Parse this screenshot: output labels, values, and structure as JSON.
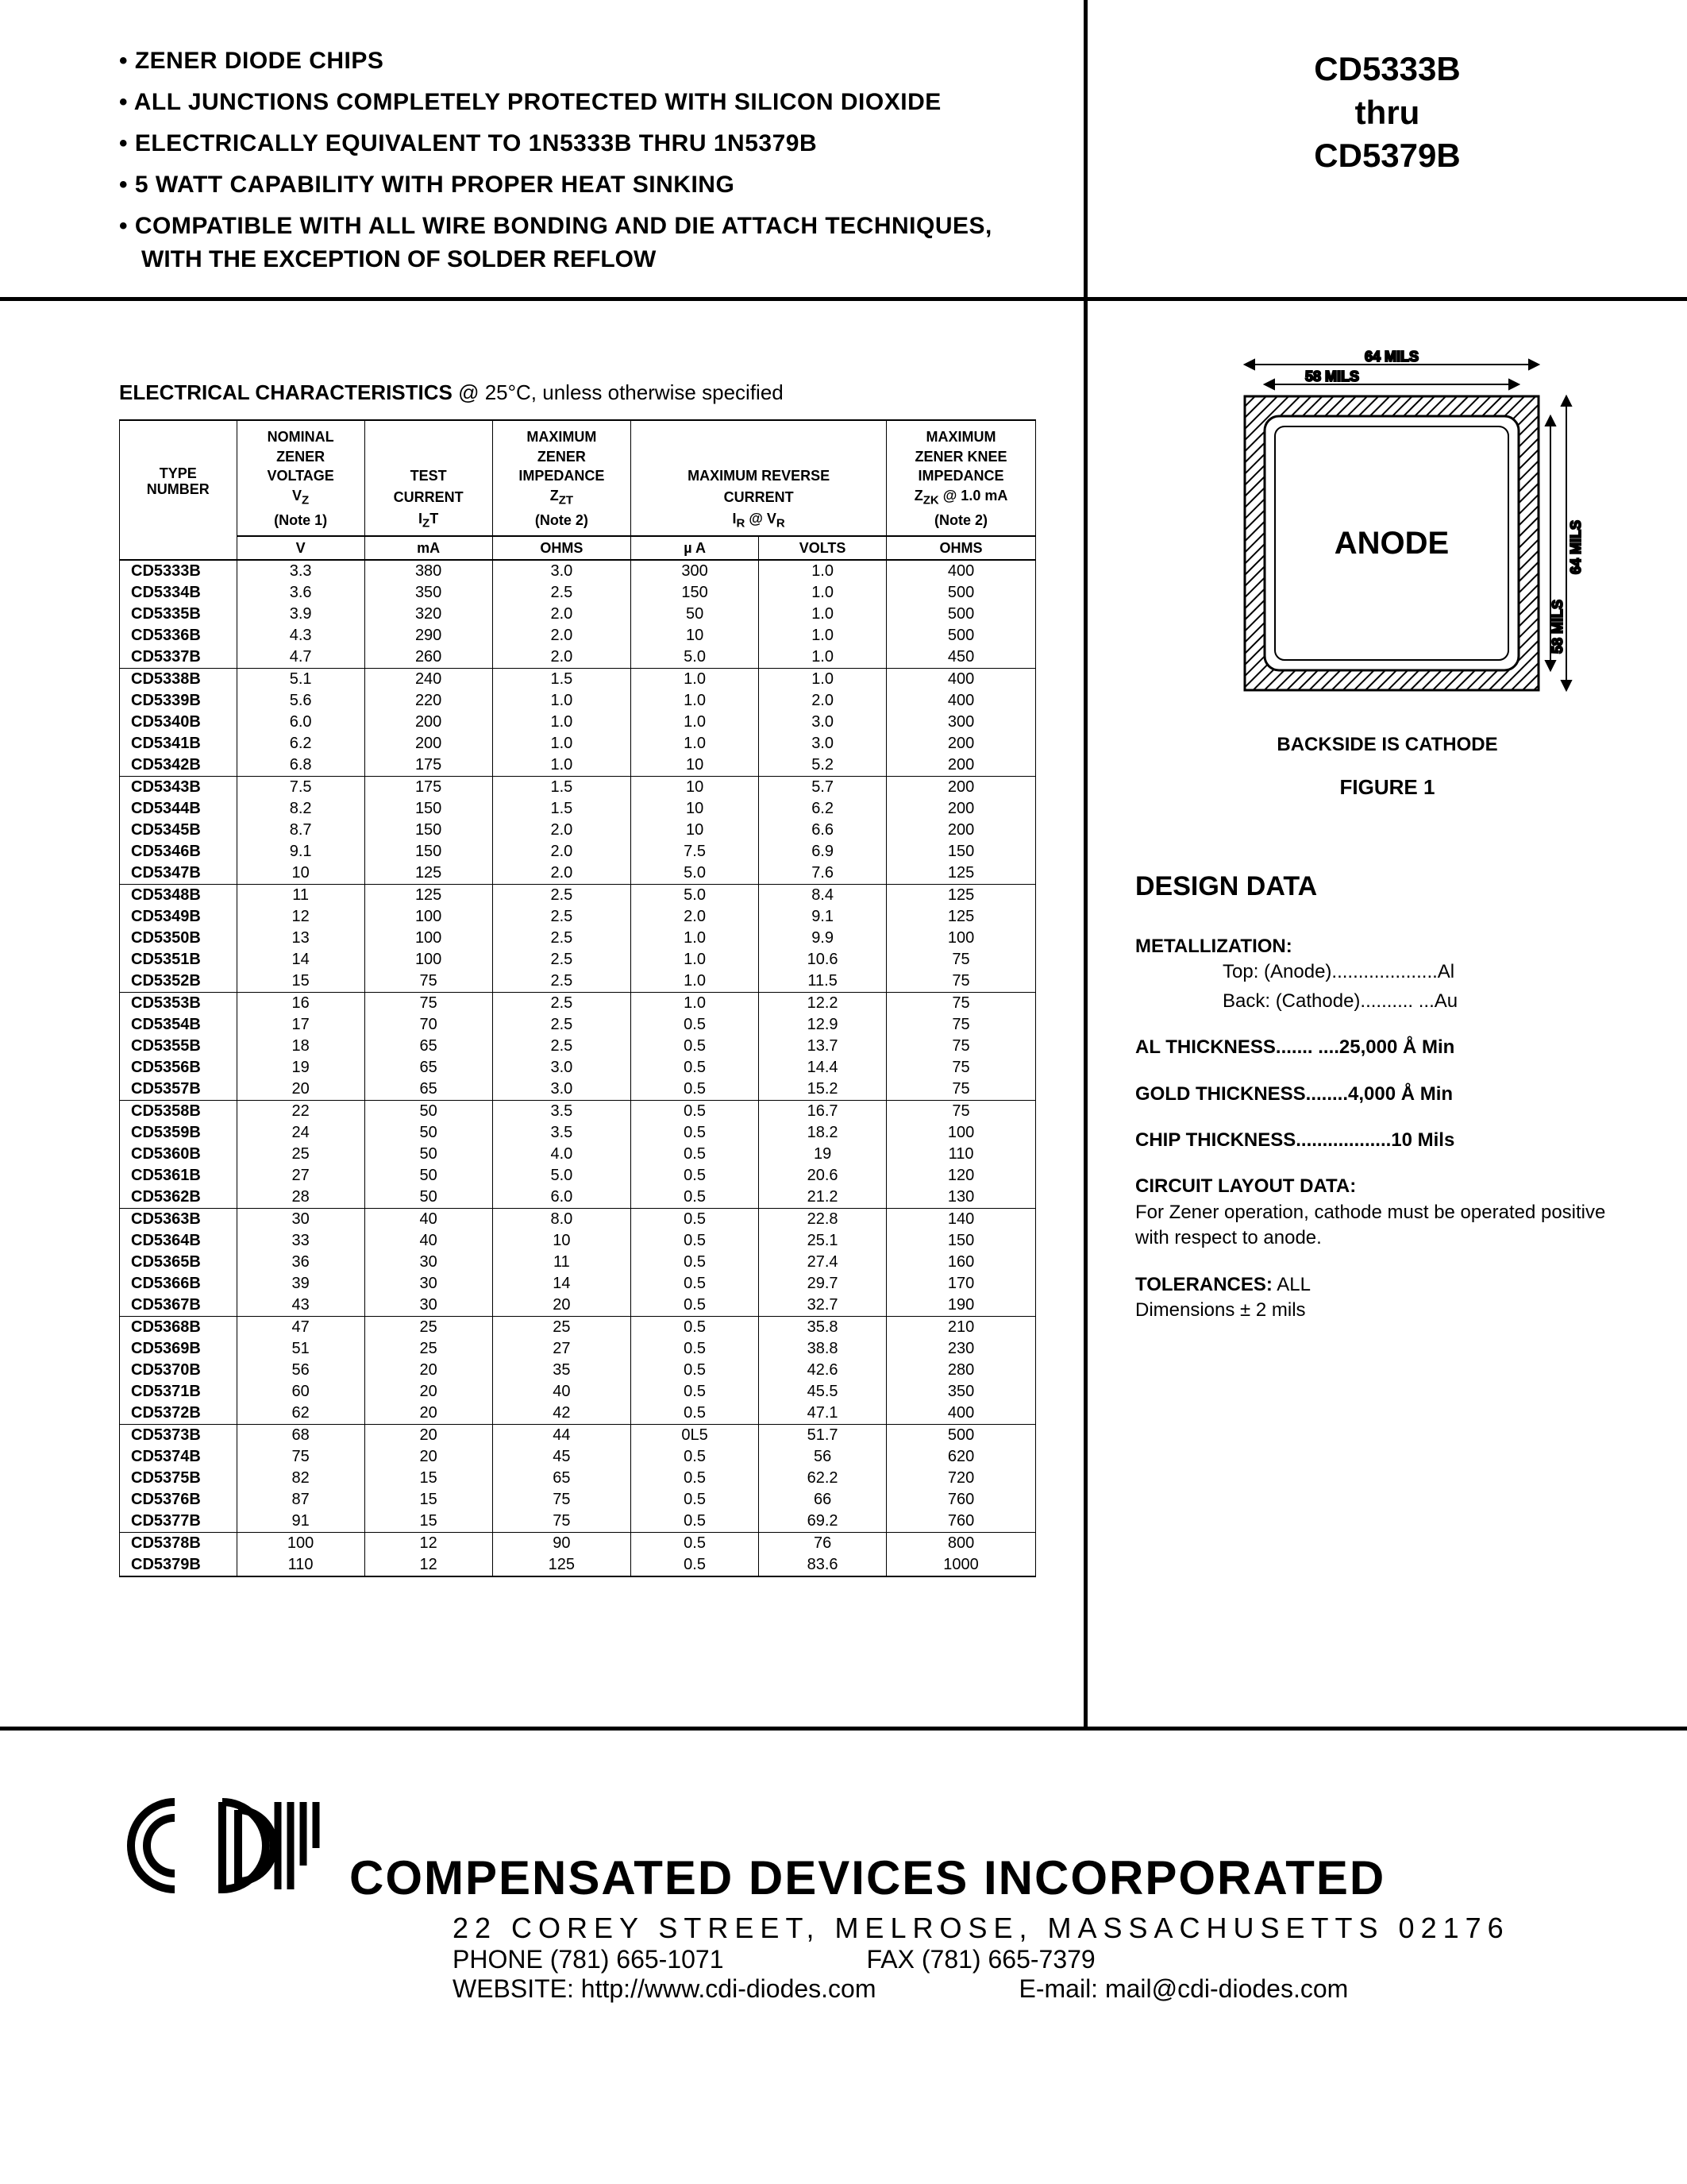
{
  "header": {
    "bullets": [
      "• ZENER DIODE CHIPS",
      "• ALL JUNCTIONS COMPLETELY PROTECTED WITH SILICON DIOXIDE",
      "• ELECTRICALLY EQUIVALENT TO 1N5333B THRU 1N5379B",
      "• 5 WATT CAPABILITY WITH PROPER HEAT SINKING",
      "• COMPATIBLE WITH ALL WIRE BONDING AND DIE ATTACH TECHNIQUES,"
    ],
    "bullet_sub": "WITH THE EXCEPTION OF SOLDER REFLOW",
    "part_range": [
      "CD5333B",
      "thru",
      "CD5379B"
    ]
  },
  "elec": {
    "title_bold": "ELECTRICAL CHARACTERISTICS",
    "title_rest": " @ 25°C, unless otherwise specified",
    "columns": {
      "type": [
        "TYPE",
        "NUMBER"
      ],
      "vz": [
        "NOMINAL",
        "ZENER",
        "VOLTAGE",
        "V_Z",
        "(Note 1)"
      ],
      "izt": [
        "TEST",
        "CURRENT",
        "I_ZT"
      ],
      "zzt": [
        "MAXIMUM",
        "ZENER",
        "IMPEDANCE",
        "Z_ZT",
        "(Note 2)"
      ],
      "rev": [
        "MAXIMUM REVERSE",
        "CURRENT",
        "I_R @ V_R"
      ],
      "zzk": [
        "MAXIMUM",
        "ZENER KNEE",
        "IMPEDANCE",
        "Z_ZK @ 1.0 mA",
        "(Note 2)"
      ]
    },
    "units": [
      "",
      "V",
      "mA",
      "OHMS",
      "µ A",
      "VOLTS",
      "OHMS"
    ],
    "groups": [
      [
        [
          "CD5333B",
          "3.3",
          "380",
          "3.0",
          "300",
          "1.0",
          "400"
        ],
        [
          "CD5334B",
          "3.6",
          "350",
          "2.5",
          "150",
          "1.0",
          "500"
        ],
        [
          "CD5335B",
          "3.9",
          "320",
          "2.0",
          "50",
          "1.0",
          "500"
        ],
        [
          "CD5336B",
          "4.3",
          "290",
          "2.0",
          "10",
          "1.0",
          "500"
        ],
        [
          "CD5337B",
          "4.7",
          "260",
          "2.0",
          "5.0",
          "1.0",
          "450"
        ]
      ],
      [
        [
          "CD5338B",
          "5.1",
          "240",
          "1.5",
          "1.0",
          "1.0",
          "400"
        ],
        [
          "CD5339B",
          "5.6",
          "220",
          "1.0",
          "1.0",
          "2.0",
          "400"
        ],
        [
          "CD5340B",
          "6.0",
          "200",
          "1.0",
          "1.0",
          "3.0",
          "300"
        ],
        [
          "CD5341B",
          "6.2",
          "200",
          "1.0",
          "1.0",
          "3.0",
          "200"
        ],
        [
          "CD5342B",
          "6.8",
          "175",
          "1.0",
          "10",
          "5.2",
          "200"
        ]
      ],
      [
        [
          "CD5343B",
          "7.5",
          "175",
          "1.5",
          "10",
          "5.7",
          "200"
        ],
        [
          "CD5344B",
          "8.2",
          "150",
          "1.5",
          "10",
          "6.2",
          "200"
        ],
        [
          "CD5345B",
          "8.7",
          "150",
          "2.0",
          "10",
          "6.6",
          "200"
        ],
        [
          "CD5346B",
          "9.1",
          "150",
          "2.0",
          "7.5",
          "6.9",
          "150"
        ],
        [
          "CD5347B",
          "10",
          "125",
          "2.0",
          "5.0",
          "7.6",
          "125"
        ]
      ],
      [
        [
          "CD5348B",
          "11",
          "125",
          "2.5",
          "5.0",
          "8.4",
          "125"
        ],
        [
          "CD5349B",
          "12",
          "100",
          "2.5",
          "2.0",
          "9.1",
          "125"
        ],
        [
          "CD5350B",
          "13",
          "100",
          "2.5",
          "1.0",
          "9.9",
          "100"
        ],
        [
          "CD5351B",
          "14",
          "100",
          "2.5",
          "1.0",
          "10.6",
          "75"
        ],
        [
          "CD5352B",
          "15",
          "75",
          "2.5",
          "1.0",
          "11.5",
          "75"
        ]
      ],
      [
        [
          "CD5353B",
          "16",
          "75",
          "2.5",
          "1.0",
          "12.2",
          "75"
        ],
        [
          "CD5354B",
          "17",
          "70",
          "2.5",
          "0.5",
          "12.9",
          "75"
        ],
        [
          "CD5355B",
          "18",
          "65",
          "2.5",
          "0.5",
          "13.7",
          "75"
        ],
        [
          "CD5356B",
          "19",
          "65",
          "3.0",
          "0.5",
          "14.4",
          "75"
        ],
        [
          "CD5357B",
          "20",
          "65",
          "3.0",
          "0.5",
          "15.2",
          "75"
        ]
      ],
      [
        [
          "CD5358B",
          "22",
          "50",
          "3.5",
          "0.5",
          "16.7",
          "75"
        ],
        [
          "CD5359B",
          "24",
          "50",
          "3.5",
          "0.5",
          "18.2",
          "100"
        ],
        [
          "CD5360B",
          "25",
          "50",
          "4.0",
          "0.5",
          "19",
          "110"
        ],
        [
          "CD5361B",
          "27",
          "50",
          "5.0",
          "0.5",
          "20.6",
          "120"
        ],
        [
          "CD5362B",
          "28",
          "50",
          "6.0",
          "0.5",
          "21.2",
          "130"
        ]
      ],
      [
        [
          "CD5363B",
          "30",
          "40",
          "8.0",
          "0.5",
          "22.8",
          "140"
        ],
        [
          "CD5364B",
          "33",
          "40",
          "10",
          "0.5",
          "25.1",
          "150"
        ],
        [
          "CD5365B",
          "36",
          "30",
          "11",
          "0.5",
          "27.4",
          "160"
        ],
        [
          "CD5366B",
          "39",
          "30",
          "14",
          "0.5",
          "29.7",
          "170"
        ],
        [
          "CD5367B",
          "43",
          "30",
          "20",
          "0.5",
          "32.7",
          "190"
        ]
      ],
      [
        [
          "CD5368B",
          "47",
          "25",
          "25",
          "0.5",
          "35.8",
          "210"
        ],
        [
          "CD5369B",
          "51",
          "25",
          "27",
          "0.5",
          "38.8",
          "230"
        ],
        [
          "CD5370B",
          "56",
          "20",
          "35",
          "0.5",
          "42.6",
          "280"
        ],
        [
          "CD5371B",
          "60",
          "20",
          "40",
          "0.5",
          "45.5",
          "350"
        ],
        [
          "CD5372B",
          "62",
          "20",
          "42",
          "0.5",
          "47.1",
          "400"
        ]
      ],
      [
        [
          "CD5373B",
          "68",
          "20",
          "44",
          "0L5",
          "51.7",
          "500"
        ],
        [
          "CD5374B",
          "75",
          "20",
          "45",
          "0.5",
          "56",
          "620"
        ],
        [
          "CD5375B",
          "82",
          "15",
          "65",
          "0.5",
          "62.2",
          "720"
        ],
        [
          "CD5376B",
          "87",
          "15",
          "75",
          "0.5",
          "66",
          "760"
        ],
        [
          "CD5377B",
          "91",
          "15",
          "75",
          "0.5",
          "69.2",
          "760"
        ]
      ],
      [
        [
          "CD5378B",
          "100",
          "12",
          "90",
          "0.5",
          "76",
          "800"
        ],
        [
          "CD5379B",
          "110",
          "12",
          "125",
          "0.5",
          "83.6",
          "1000"
        ]
      ]
    ]
  },
  "figure": {
    "outer_dim": "64 MILS",
    "inner_dim": "58 MILS",
    "anode_label": "ANODE",
    "outer_right": "64 MILS",
    "inner_right": "58 MILS",
    "caption": "BACKSIDE IS CATHODE",
    "fig_num": "FIGURE 1",
    "hatch_stroke": "#000000",
    "bg": "#ffffff"
  },
  "design": {
    "title": "DESIGN DATA",
    "metallization_head": "METALLIZATION:",
    "metallization_top": "Top: (Anode)....................Al",
    "metallization_back": "Back: (Cathode).......... ...Au",
    "al_thickness": "AL THICKNESS....... ....25,000 Å Min",
    "gold_thickness": "GOLD THICKNESS........4,000 Å Min",
    "chip_thickness": "CHIP THICKNESS..................10 Mils",
    "circuit_head": "CIRCUIT LAYOUT DATA:",
    "circuit_body": "For Zener operation, cathode must be operated positive with respect to anode.",
    "tol_head": "TOLERANCES:",
    "tol_body": " ALL",
    "tol_line2": "Dimensions ± 2 mils"
  },
  "footer": {
    "company": "COMPENSATED DEVICES INCORPORATED",
    "address": "22 COREY STREET, MELROSE, MASSACHUSETTS 02176",
    "phone": "PHONE (781) 665-1071",
    "fax": "FAX (781) 665-7379",
    "website": "WEBSITE:  http://www.cdi-diodes.com",
    "email": "E-mail: mail@cdi-diodes.com"
  }
}
